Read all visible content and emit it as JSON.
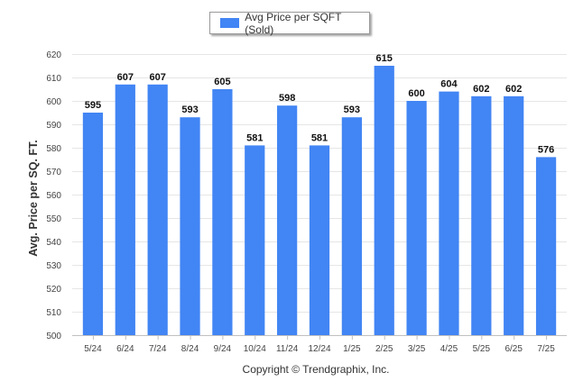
{
  "chart_data": {
    "type": "bar",
    "categories": [
      "5/24",
      "6/24",
      "7/24",
      "8/24",
      "9/24",
      "10/24",
      "11/24",
      "12/24",
      "1/25",
      "2/25",
      "3/25",
      "4/25",
      "5/25",
      "6/25",
      "7/25"
    ],
    "series": [
      {
        "name": "Avg Price per SQFT (Sold)",
        "values": [
          595,
          607,
          607,
          593,
          605,
          581,
          598,
          581,
          593,
          615,
          600,
          604,
          602,
          602,
          576
        ]
      }
    ],
    "ylabel": "Avg. Price per SQ. FT.",
    "xlabel": "",
    "ylim": [
      500,
      620
    ],
    "yticks": [
      500,
      510,
      520,
      530,
      540,
      550,
      560,
      570,
      580,
      590,
      600,
      610,
      620
    ],
    "grid": true,
    "legend_position": "top-center",
    "data_labels": true,
    "colors": {
      "bar": "#4285f4"
    }
  },
  "legend": {
    "label": "Avg Price per SQFT (Sold)"
  },
  "footer": {
    "copyright": "Copyright © Trendgraphix, Inc."
  }
}
